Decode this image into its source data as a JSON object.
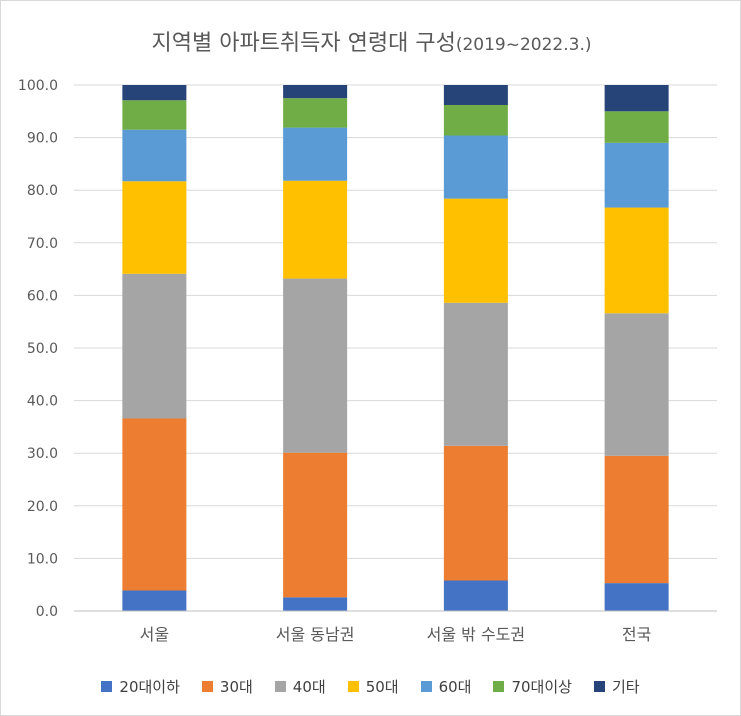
{
  "chart_data": {
    "type": "bar",
    "stacked": true,
    "title": "지역별 아파트취득자 연령대 구성",
    "subtitle": "(2019~2022.3.)",
    "categories": [
      "서울",
      "서울 동남권",
      "서울 밖 수도권",
      "전국"
    ],
    "series": [
      {
        "name": "20대이하",
        "color": "#4472c4",
        "values": [
          3.9,
          2.6,
          5.8,
          5.3
        ]
      },
      {
        "name": "30대",
        "color": "#ed7d31",
        "values": [
          32.7,
          27.5,
          25.6,
          24.2
        ]
      },
      {
        "name": "40대",
        "color": "#a5a5a5",
        "values": [
          27.5,
          33.1,
          27.2,
          27.1
        ]
      },
      {
        "name": "50대",
        "color": "#ffc000",
        "values": [
          17.6,
          18.6,
          19.8,
          20.1
        ]
      },
      {
        "name": "60대",
        "color": "#5b9bd5",
        "values": [
          9.8,
          10.1,
          12.0,
          12.3
        ]
      },
      {
        "name": "70대이상",
        "color": "#70ad47",
        "values": [
          5.6,
          5.6,
          5.8,
          6.0
        ]
      },
      {
        "name": "기타",
        "color": "#264478",
        "values": [
          2.9,
          2.5,
          3.8,
          5.0
        ]
      }
    ],
    "ylim": [
      0,
      100
    ],
    "yticks": [
      "0.0",
      "10.0",
      "20.0",
      "30.0",
      "40.0",
      "50.0",
      "60.0",
      "70.0",
      "80.0",
      "90.0",
      "100.0"
    ],
    "xlabel": "",
    "ylabel": "",
    "grid": true,
    "legend": "bottom"
  }
}
